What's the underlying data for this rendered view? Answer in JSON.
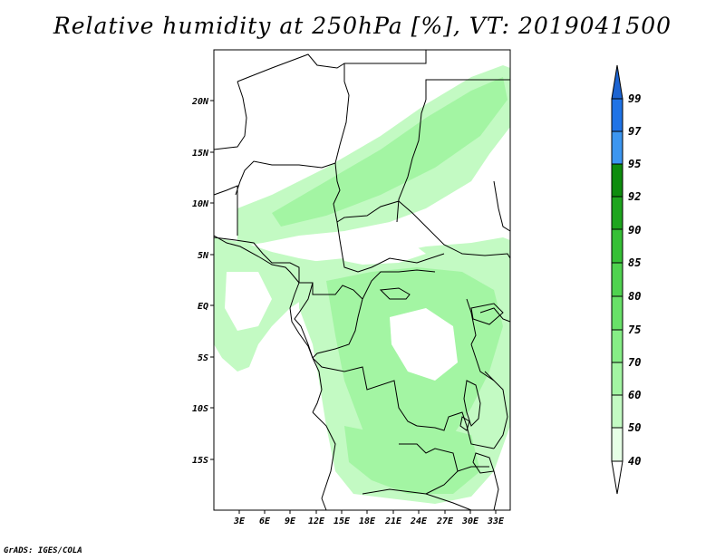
{
  "title": "Relative humidity at 250hPa [%], VT: 2019041500",
  "credit": "GrADS: IGES/COLA",
  "map": {
    "lat_labels": [
      "20N",
      "15N",
      "10N",
      "5N",
      "EQ",
      "5S",
      "10S",
      "15S"
    ],
    "lon_labels": [
      "3E",
      "6E",
      "9E",
      "12E",
      "15E",
      "18E",
      "21E",
      "24E",
      "27E",
      "30E",
      "33E"
    ],
    "lat_range": [
      -19.5,
      24.5
    ],
    "lon_range": [
      0,
      34.5
    ]
  },
  "colorbar": {
    "levels": [
      "99",
      "97",
      "95",
      "92",
      "90",
      "85",
      "80",
      "75",
      "70",
      "60",
      "50",
      "40"
    ],
    "colors": [
      "#1c64d2",
      "#1f73e6",
      "#3c96f0",
      "#0e8c0e",
      "#1ea51e",
      "#36c036",
      "#4fd24f",
      "#68e168",
      "#86ee86",
      "#a3f5a3",
      "#c3fac3",
      "#e6ffe6"
    ]
  }
}
